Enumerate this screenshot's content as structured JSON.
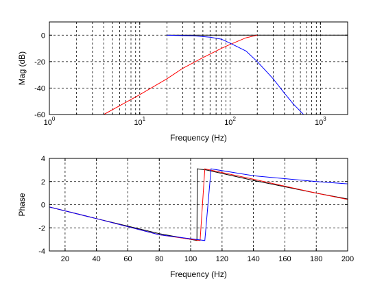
{
  "colors": {
    "background": "#ffffff",
    "axes": "#000000",
    "grid": "#000000",
    "series_black": "#000000",
    "series_red": "#ff0000",
    "series_blue": "#0000ff"
  },
  "chart_data": [
    {
      "type": "line",
      "title": "",
      "xlabel": "Frequency (Hz)",
      "ylabel": "Mag (dB)",
      "xscale": "log",
      "xlim": [
        1,
        2000
      ],
      "ylim": [
        -60,
        10
      ],
      "grid": true,
      "xticks": [
        1,
        10,
        100,
        1000
      ],
      "yticks": [
        0,
        -20,
        -40,
        -60
      ],
      "ytick_labels": [
        "0",
        "-20",
        "-40",
        "-60"
      ],
      "series": [
        {
          "color": "#000000",
          "x": [
            20,
            2000
          ],
          "y": [
            0,
            0
          ]
        },
        {
          "color": "#ff0000",
          "x": [
            4,
            10,
            20,
            30,
            50,
            80,
            100,
            150,
            200
          ],
          "y": [
            -60,
            -45,
            -33,
            -25,
            -17,
            -10,
            -7,
            -2,
            0
          ]
        },
        {
          "color": "#0000ff",
          "x": [
            20,
            40,
            60,
            80,
            100,
            150,
            200,
            300,
            400,
            500,
            650
          ],
          "y": [
            0,
            -0.5,
            -1.5,
            -3,
            -6,
            -12,
            -20,
            -33,
            -44,
            -52,
            -60
          ]
        }
      ]
    },
    {
      "type": "line",
      "title": "",
      "xlabel": "Frequency (Hz)",
      "ylabel": "Phase",
      "xlim": [
        10,
        200
      ],
      "ylim": [
        -4,
        4
      ],
      "grid": true,
      "xticks": [
        20,
        40,
        60,
        80,
        100,
        120,
        140,
        160,
        180,
        200
      ],
      "yticks": [
        4,
        2,
        0,
        -2,
        -4
      ],
      "series": [
        {
          "color": "#000000",
          "x": [
            10,
            40,
            80,
            104,
            104.2,
            110,
            140,
            180,
            200
          ],
          "y": [
            -0.2,
            -1.2,
            -2.5,
            -3.1,
            3.1,
            3.0,
            2.1,
            1.0,
            0.5
          ]
        },
        {
          "color": "#ff0000",
          "x": [
            10,
            40,
            80,
            106,
            109,
            140,
            180,
            200
          ],
          "y": [
            -0.2,
            -1.2,
            -2.6,
            -3.1,
            3.1,
            2.2,
            1.0,
            0.45
          ]
        },
        {
          "color": "#0000ff",
          "x": [
            10,
            40,
            80,
            109,
            113,
            140,
            180,
            200
          ],
          "y": [
            -0.2,
            -1.2,
            -2.6,
            -3.1,
            3.1,
            2.5,
            2.0,
            1.8
          ]
        }
      ]
    }
  ]
}
